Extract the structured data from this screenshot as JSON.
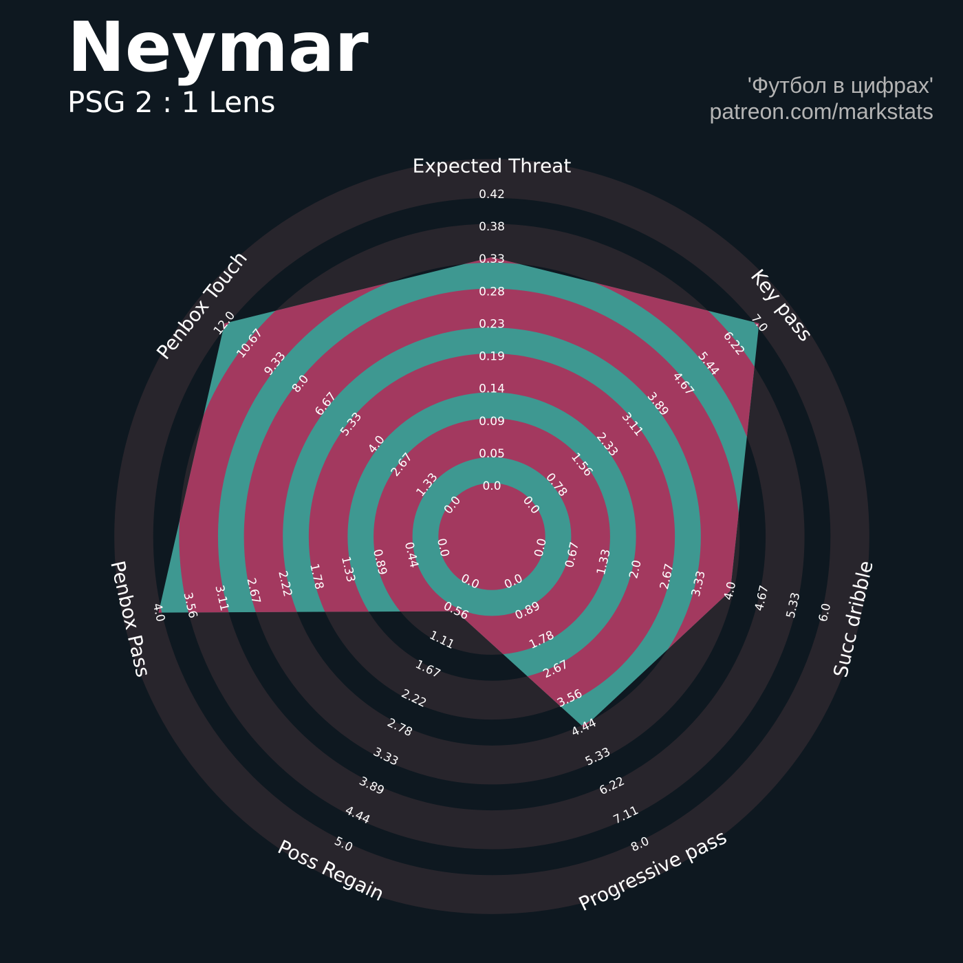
{
  "header": {
    "title": "Neymar",
    "subtitle": "PSG 2 : 1 Lens",
    "credit_line1": "'Футбол в цифрах'",
    "credit_line2": "patreon.com/markstats"
  },
  "colors": {
    "background": "#0e1820",
    "ring_band": "#28252c",
    "ring_band_inside": "#a3395f",
    "polygon_fill": "#3e9891"
  },
  "chart_data": {
    "type": "radar",
    "title": "Neymar",
    "subtitle": "PSG 2 : 1 Lens",
    "axes": [
      {
        "name": "Expected Threat",
        "min": 0,
        "max": 0.42,
        "value": 0.33,
        "ticks": [
          "0.0",
          "0.05",
          "0.09",
          "0.14",
          "0.19",
          "0.23",
          "0.28",
          "0.33",
          "0.38",
          "0.42"
        ]
      },
      {
        "name": "Key pass",
        "min": 0,
        "max": 7,
        "value": 7,
        "ticks": [
          "0.0",
          "0.78",
          "1.56",
          "2.33",
          "3.11",
          "3.89",
          "4.67",
          "5.44",
          "6.22",
          "7.0"
        ]
      },
      {
        "name": "Succ dribble",
        "min": 0,
        "max": 6,
        "value": 4,
        "ticks": [
          "0.0",
          "0.67",
          "1.33",
          "2.0",
          "2.67",
          "3.33",
          "4.0",
          "4.67",
          "5.33",
          "6.0"
        ]
      },
      {
        "name": "Progressive pass",
        "min": 0,
        "max": 8,
        "value": 4.44,
        "ticks": [
          "0.0",
          "0.89",
          "1.78",
          "2.67",
          "3.56",
          "4.44",
          "5.33",
          "6.22",
          "7.11",
          "8.0"
        ]
      },
      {
        "name": "Poss Regain",
        "min": 0,
        "max": 5,
        "value": 0.56,
        "ticks": [
          "0.0",
          "0.56",
          "1.11",
          "1.67",
          "2.22",
          "2.78",
          "3.33",
          "3.89",
          "4.44",
          "5.0"
        ]
      },
      {
        "name": "Penbox Pass",
        "min": 0,
        "max": 4,
        "value": 4,
        "ticks": [
          "0.0",
          "0.44",
          "0.89",
          "1.33",
          "1.78",
          "2.22",
          "2.67",
          "3.11",
          "3.56",
          "4.0"
        ]
      },
      {
        "name": "Penbox Touch",
        "min": 0,
        "max": 12,
        "value": 12,
        "ticks": [
          "0.0",
          "1.33",
          "2.67",
          "4.0",
          "5.33",
          "6.67",
          "8.0",
          "9.33",
          "10.67",
          "12.0"
        ]
      }
    ],
    "legend": "none",
    "grid": "concentric rings"
  }
}
